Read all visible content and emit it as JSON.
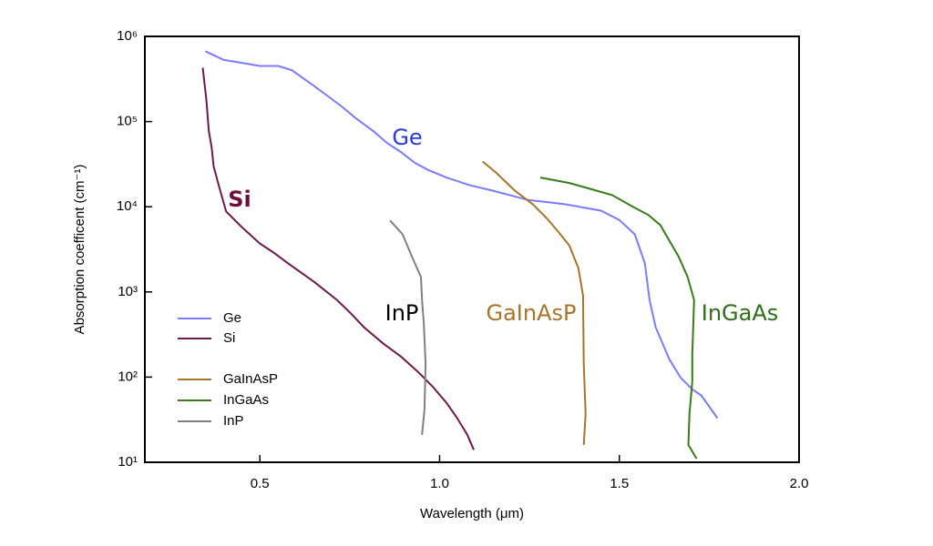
{
  "chart_data": {
    "type": "line",
    "x_label": "Wavelength (μm)",
    "y_label": "Absorption coefficent (cm⁻¹)",
    "log_y": true,
    "legend": "lower left",
    "xlim": [
      0.18,
      2.0
    ],
    "xticks": [
      0.5,
      {
        "value": 1,
        "label": "1.0"
      },
      1.5,
      {
        "value": 2,
        "label": "2.0"
      }
    ],
    "ylim": [
      10,
      1000000
    ],
    "yticks": [
      {
        "value": 10,
        "label": "10¹"
      },
      {
        "value": 100,
        "label": "10²"
      },
      {
        "value": 1000,
        "label": "10³"
      },
      {
        "value": 10000,
        "label": "10⁴"
      },
      {
        "value": 100000,
        "label": "10⁵"
      },
      {
        "value": 1000000,
        "label": "10⁶"
      }
    ],
    "series": [
      {
        "name": "Ge",
        "color": "#7b7bff",
        "x": [
          0.348,
          0.399,
          0.449,
          0.5,
          0.551,
          0.589,
          0.652,
          0.728,
          0.766,
          0.816,
          0.854,
          0.892,
          0.93,
          0.968,
          1.019,
          1.082,
          1.146,
          1.247,
          1.348,
          1.449,
          1.5,
          1.543,
          1.571,
          1.584,
          1.601,
          1.639,
          1.67,
          1.703,
          1.728,
          1.773
        ],
        "values": [
          670000,
          530000,
          490000,
          450000,
          450000,
          400000,
          260000,
          150000,
          110000,
          77000,
          56000,
          44000,
          33000,
          27000,
          22000,
          18000,
          15500,
          12000,
          10700,
          9000,
          7000,
          4750,
          2160,
          805,
          385,
          162,
          99,
          72,
          61,
          33
        ]
      },
      {
        "name": "Si",
        "color": "#6b1a4a",
        "x": [
          0.341,
          0.351,
          0.358,
          0.366,
          0.371,
          0.386,
          0.406,
          0.449,
          0.5,
          0.538,
          0.576,
          0.652,
          0.715,
          0.753,
          0.791,
          0.842,
          0.892,
          0.943,
          0.981,
          1.019,
          1.049,
          1.077,
          1.095
        ],
        "values": [
          430000,
          180000,
          77000,
          49000,
          30000,
          17500,
          8800,
          5800,
          3700,
          2900,
          2200,
          1300,
          800,
          560,
          380,
          250,
          175,
          112,
          77,
          50,
          33,
          21,
          14
        ]
      },
      {
        "name": "GaInAsP",
        "color": "#a8742a",
        "x": [
          1.12,
          1.158,
          1.209,
          1.259,
          1.297,
          1.33,
          1.361,
          1.386,
          1.399,
          1.401,
          1.406,
          1.401
        ],
        "values": [
          34000,
          25000,
          15500,
          10700,
          7400,
          5100,
          3500,
          1900,
          910,
          143,
          37,
          16
        ]
      },
      {
        "name": "InGaAs",
        "color": "#3a7a1a",
        "x": [
          1.28,
          1.361,
          1.424,
          1.48,
          1.538,
          1.581,
          1.614,
          1.639,
          1.665,
          1.69,
          1.708,
          1.703,
          1.703,
          1.695,
          1.692,
          1.715
        ],
        "values": [
          22000,
          19000,
          16000,
          13700,
          10000,
          8000,
          6100,
          4000,
          2600,
          1500,
          805,
          183,
          88,
          37,
          16,
          11
        ]
      },
      {
        "name": "InP",
        "color": "#808080",
        "x": [
          0.862,
          0.897,
          0.923,
          0.948,
          0.951,
          0.956,
          0.961,
          0.958,
          0.951
        ],
        "values": [
          6900,
          4750,
          2600,
          1500,
          805,
          435,
          143,
          42,
          21
        ]
      }
    ],
    "annotations": [
      {
        "text": "Ge",
        "color": "#2a3ad8"
      },
      {
        "text": "Si",
        "color": "#6b0f3a"
      },
      {
        "text": "InP",
        "color": "#000000"
      },
      {
        "text": "GaInAsP",
        "color": "#a8742a"
      },
      {
        "text": "InGaAs",
        "color": "#2f6e1a"
      }
    ]
  }
}
